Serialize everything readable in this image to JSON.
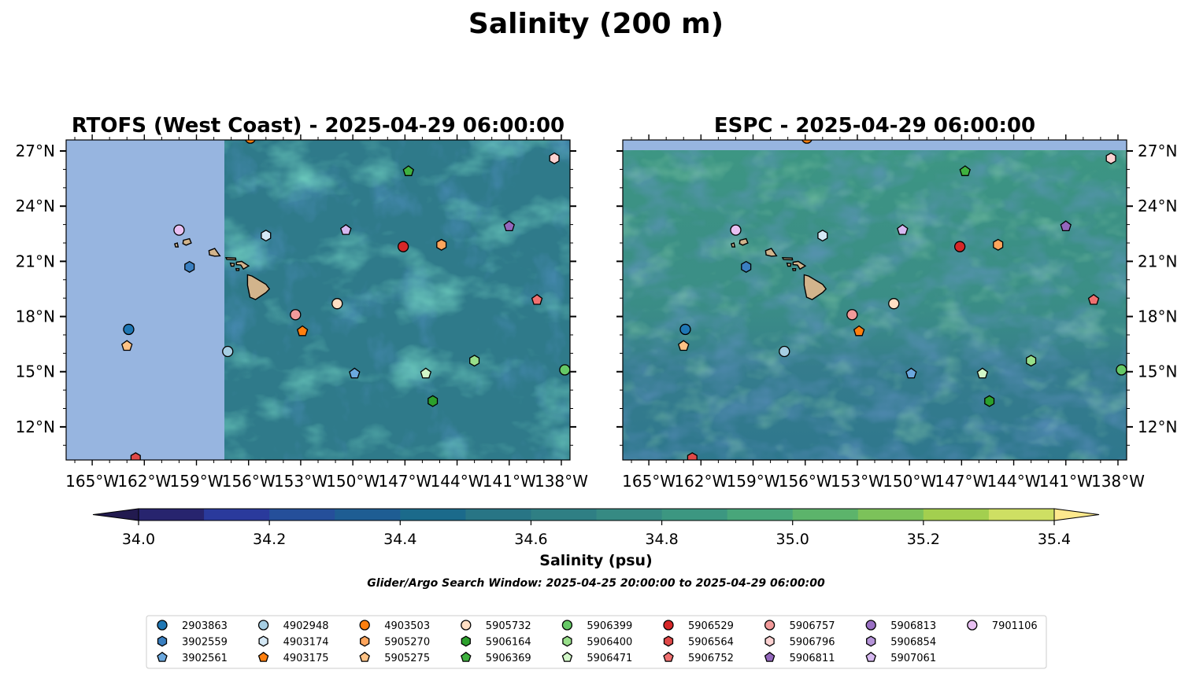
{
  "figure": {
    "title": "Salinity (200 m)",
    "search_window": "Glider/Argo Search Window: 2025-04-25 20:00:00 to 2025-04-29 06:00:00"
  },
  "colors": {
    "land": "#d2b48c",
    "nodata": "#97b5e0",
    "ocean_base": "#2f7a8a",
    "ocean_base_espc": "#3b8f86"
  },
  "colorbar": {
    "label": "Salinity (psu)",
    "min": 34.0,
    "max": 35.4,
    "step": 0.1,
    "ticks": [
      "34.0",
      "34.2",
      "34.4",
      "34.6",
      "34.8",
      "35.0",
      "35.2",
      "35.4"
    ],
    "colors": [
      "#27246e",
      "#2a3a9c",
      "#254f9a",
      "#1e5d93",
      "#1b6a8b",
      "#287585",
      "#2f7f84",
      "#368a83",
      "#3c9781",
      "#48a67a",
      "#5cb46b",
      "#7cc25a",
      "#a3cf4f",
      "#cedf63"
    ],
    "under_color": "#221a4f",
    "over_color": "#fde98d"
  },
  "chart_data": [
    {
      "type": "map",
      "title": "RTOFS (West Coast) - 2025-04-29 06:00:00",
      "model": "RTOFS (West Coast)",
      "time": "2025-04-29 06:00:00",
      "variable": "Salinity",
      "depth": "200 m",
      "units": "psu",
      "xlim": [
        -166.5,
        -137.5
      ],
      "ylim": [
        10.2,
        27.6
      ],
      "model_west_edge": -157.4,
      "ocean_mean_salinity": 34.6,
      "x_tick_labels": [
        "165°W",
        "162°W",
        "159°W",
        "156°W",
        "153°W",
        "150°W",
        "147°W",
        "144°W",
        "141°W",
        "138°W"
      ],
      "y_tick_labels": [
        "27°N",
        "24°N",
        "21°N",
        "18°N",
        "15°N",
        "12°N"
      ],
      "y_axis_side": "left"
    },
    {
      "type": "map",
      "title": "ESPC - 2025-04-29 06:00:00",
      "model": "ESPC",
      "time": "2025-04-29 06:00:00",
      "variable": "Salinity",
      "depth": "200 m",
      "units": "psu",
      "xlim": [
        -166.5,
        -137.5
      ],
      "ylim": [
        10.2,
        27.6
      ],
      "model_north_edge": 27.05,
      "ocean_mean_salinity": 34.7,
      "x_tick_labels": [
        "165°W",
        "162°W",
        "159°W",
        "156°W",
        "153°W",
        "150°W",
        "147°W",
        "144°W",
        "141°W",
        "138°W"
      ],
      "y_tick_labels": [
        "27°N",
        "24°N",
        "21°N",
        "18°N",
        "15°N",
        "12°N"
      ],
      "y_axis_side": "right"
    }
  ],
  "floats": [
    {
      "id": "2903863",
      "marker": "circle",
      "color": "#1f77b4",
      "lon": -162.9,
      "lat": 17.3
    },
    {
      "id": "3902559",
      "marker": "hexagon",
      "color": "#3a7fc0",
      "lon": -159.4,
      "lat": 20.7
    },
    {
      "id": "3902561",
      "marker": "pentagon",
      "color": "#6ba8de",
      "lon": -149.9,
      "lat": 14.9
    },
    {
      "id": "4902948",
      "marker": "circle",
      "color": "#a6cee3",
      "lon": -157.2,
      "lat": 16.1
    },
    {
      "id": "4903174",
      "marker": "hexagon",
      "color": "#d4e8f5",
      "lon": -155.0,
      "lat": 22.4
    },
    {
      "id": "4903175",
      "marker": "pentagon",
      "color": "#ff7f0e",
      "lon": -152.9,
      "lat": 17.2
    },
    {
      "id": "4903503",
      "marker": "circle",
      "color": "#ff7f0e",
      "lon": -155.9,
      "lat": 27.7
    },
    {
      "id": "5905270",
      "marker": "hexagon",
      "color": "#ffa55c",
      "lon": -144.9,
      "lat": 21.9
    },
    {
      "id": "5905275",
      "marker": "pentagon",
      "color": "#ffc285",
      "lon": -163.0,
      "lat": 16.4
    },
    {
      "id": "5905732",
      "marker": "circle",
      "color": "#ffdfc4",
      "lon": -150.9,
      "lat": 18.7
    },
    {
      "id": "5906164",
      "marker": "hexagon",
      "color": "#2ca02c",
      "lon": -145.4,
      "lat": 13.4
    },
    {
      "id": "5906369",
      "marker": "pentagon",
      "color": "#3fb13f",
      "lon": -146.8,
      "lat": 25.9
    },
    {
      "id": "5906399",
      "marker": "circle",
      "color": "#66c966",
      "lon": -137.8,
      "lat": 15.1
    },
    {
      "id": "5906400",
      "marker": "hexagon",
      "color": "#98df8a",
      "lon": -143.0,
      "lat": 15.6
    },
    {
      "id": "5906471",
      "marker": "pentagon",
      "color": "#d2f7c8",
      "lon": -145.8,
      "lat": 14.9
    },
    {
      "id": "5906529",
      "marker": "circle",
      "color": "#d62728",
      "lon": -147.1,
      "lat": 21.8
    },
    {
      "id": "5906564",
      "marker": "hexagon",
      "color": "#e04848",
      "lon": -162.5,
      "lat": 10.3
    },
    {
      "id": "5906752",
      "marker": "pentagon",
      "color": "#f07070",
      "lon": -139.4,
      "lat": 18.9
    },
    {
      "id": "5906757",
      "marker": "circle",
      "color": "#f29a9a",
      "lon": -153.3,
      "lat": 18.1
    },
    {
      "id": "5906796",
      "marker": "hexagon",
      "color": "#fcd2d2",
      "lon": -138.4,
      "lat": 26.6
    },
    {
      "id": "5906811",
      "marker": "pentagon",
      "color": "#9467bd",
      "lon": -141.0,
      "lat": 22.9
    },
    {
      "id": "5906813",
      "marker": "circle",
      "color": "#9a70c4",
      "lon": null,
      "lat": null
    },
    {
      "id": "5906854",
      "marker": "hexagon",
      "color": "#b594d8",
      "lon": null,
      "lat": null
    },
    {
      "id": "5907061",
      "marker": "pentagon",
      "color": "#d6b8f0",
      "lon": -150.4,
      "lat": 22.7
    },
    {
      "id": "7901106",
      "marker": "circle",
      "color": "#e8c0f2",
      "lon": -160.0,
      "lat": 22.7
    }
  ],
  "islands": [
    {
      "name": "Hawaii",
      "poly": [
        [
          -156.06,
          20.27
        ],
        [
          -155.8,
          20.2
        ],
        [
          -155.0,
          19.75
        ],
        [
          -154.8,
          19.5
        ],
        [
          -155.0,
          19.3
        ],
        [
          -155.6,
          18.92
        ],
        [
          -155.92,
          19.05
        ],
        [
          -156.06,
          19.7
        ]
      ]
    },
    {
      "name": "Maui",
      "poly": [
        [
          -156.7,
          20.95
        ],
        [
          -156.4,
          21.0
        ],
        [
          -155.99,
          20.75
        ],
        [
          -156.3,
          20.58
        ],
        [
          -156.45,
          20.8
        ],
        [
          -156.7,
          20.82
        ]
      ]
    },
    {
      "name": "Molokai",
      "poly": [
        [
          -157.3,
          21.2
        ],
        [
          -156.75,
          21.18
        ],
        [
          -156.73,
          21.08
        ],
        [
          -157.25,
          21.1
        ]
      ]
    },
    {
      "name": "Oahu",
      "poly": [
        [
          -158.28,
          21.58
        ],
        [
          -157.95,
          21.7
        ],
        [
          -157.65,
          21.3
        ],
        [
          -157.95,
          21.28
        ],
        [
          -158.25,
          21.35
        ]
      ]
    },
    {
      "name": "Kauai",
      "poly": [
        [
          -159.75,
          22.15
        ],
        [
          -159.4,
          22.23
        ],
        [
          -159.3,
          22.0
        ],
        [
          -159.6,
          21.88
        ],
        [
          -159.78,
          21.97
        ]
      ]
    },
    {
      "name": "Niihau",
      "poly": [
        [
          -160.25,
          21.95
        ],
        [
          -160.1,
          22.0
        ],
        [
          -160.05,
          21.78
        ],
        [
          -160.2,
          21.78
        ]
      ]
    },
    {
      "name": "Lanai",
      "poly": [
        [
          -157.05,
          20.9
        ],
        [
          -156.82,
          20.88
        ],
        [
          -156.85,
          20.74
        ],
        [
          -157.0,
          20.74
        ]
      ]
    },
    {
      "name": "Kahoolawe",
      "poly": [
        [
          -156.72,
          20.6
        ],
        [
          -156.55,
          20.6
        ],
        [
          -156.56,
          20.5
        ],
        [
          -156.7,
          20.5
        ]
      ]
    }
  ]
}
